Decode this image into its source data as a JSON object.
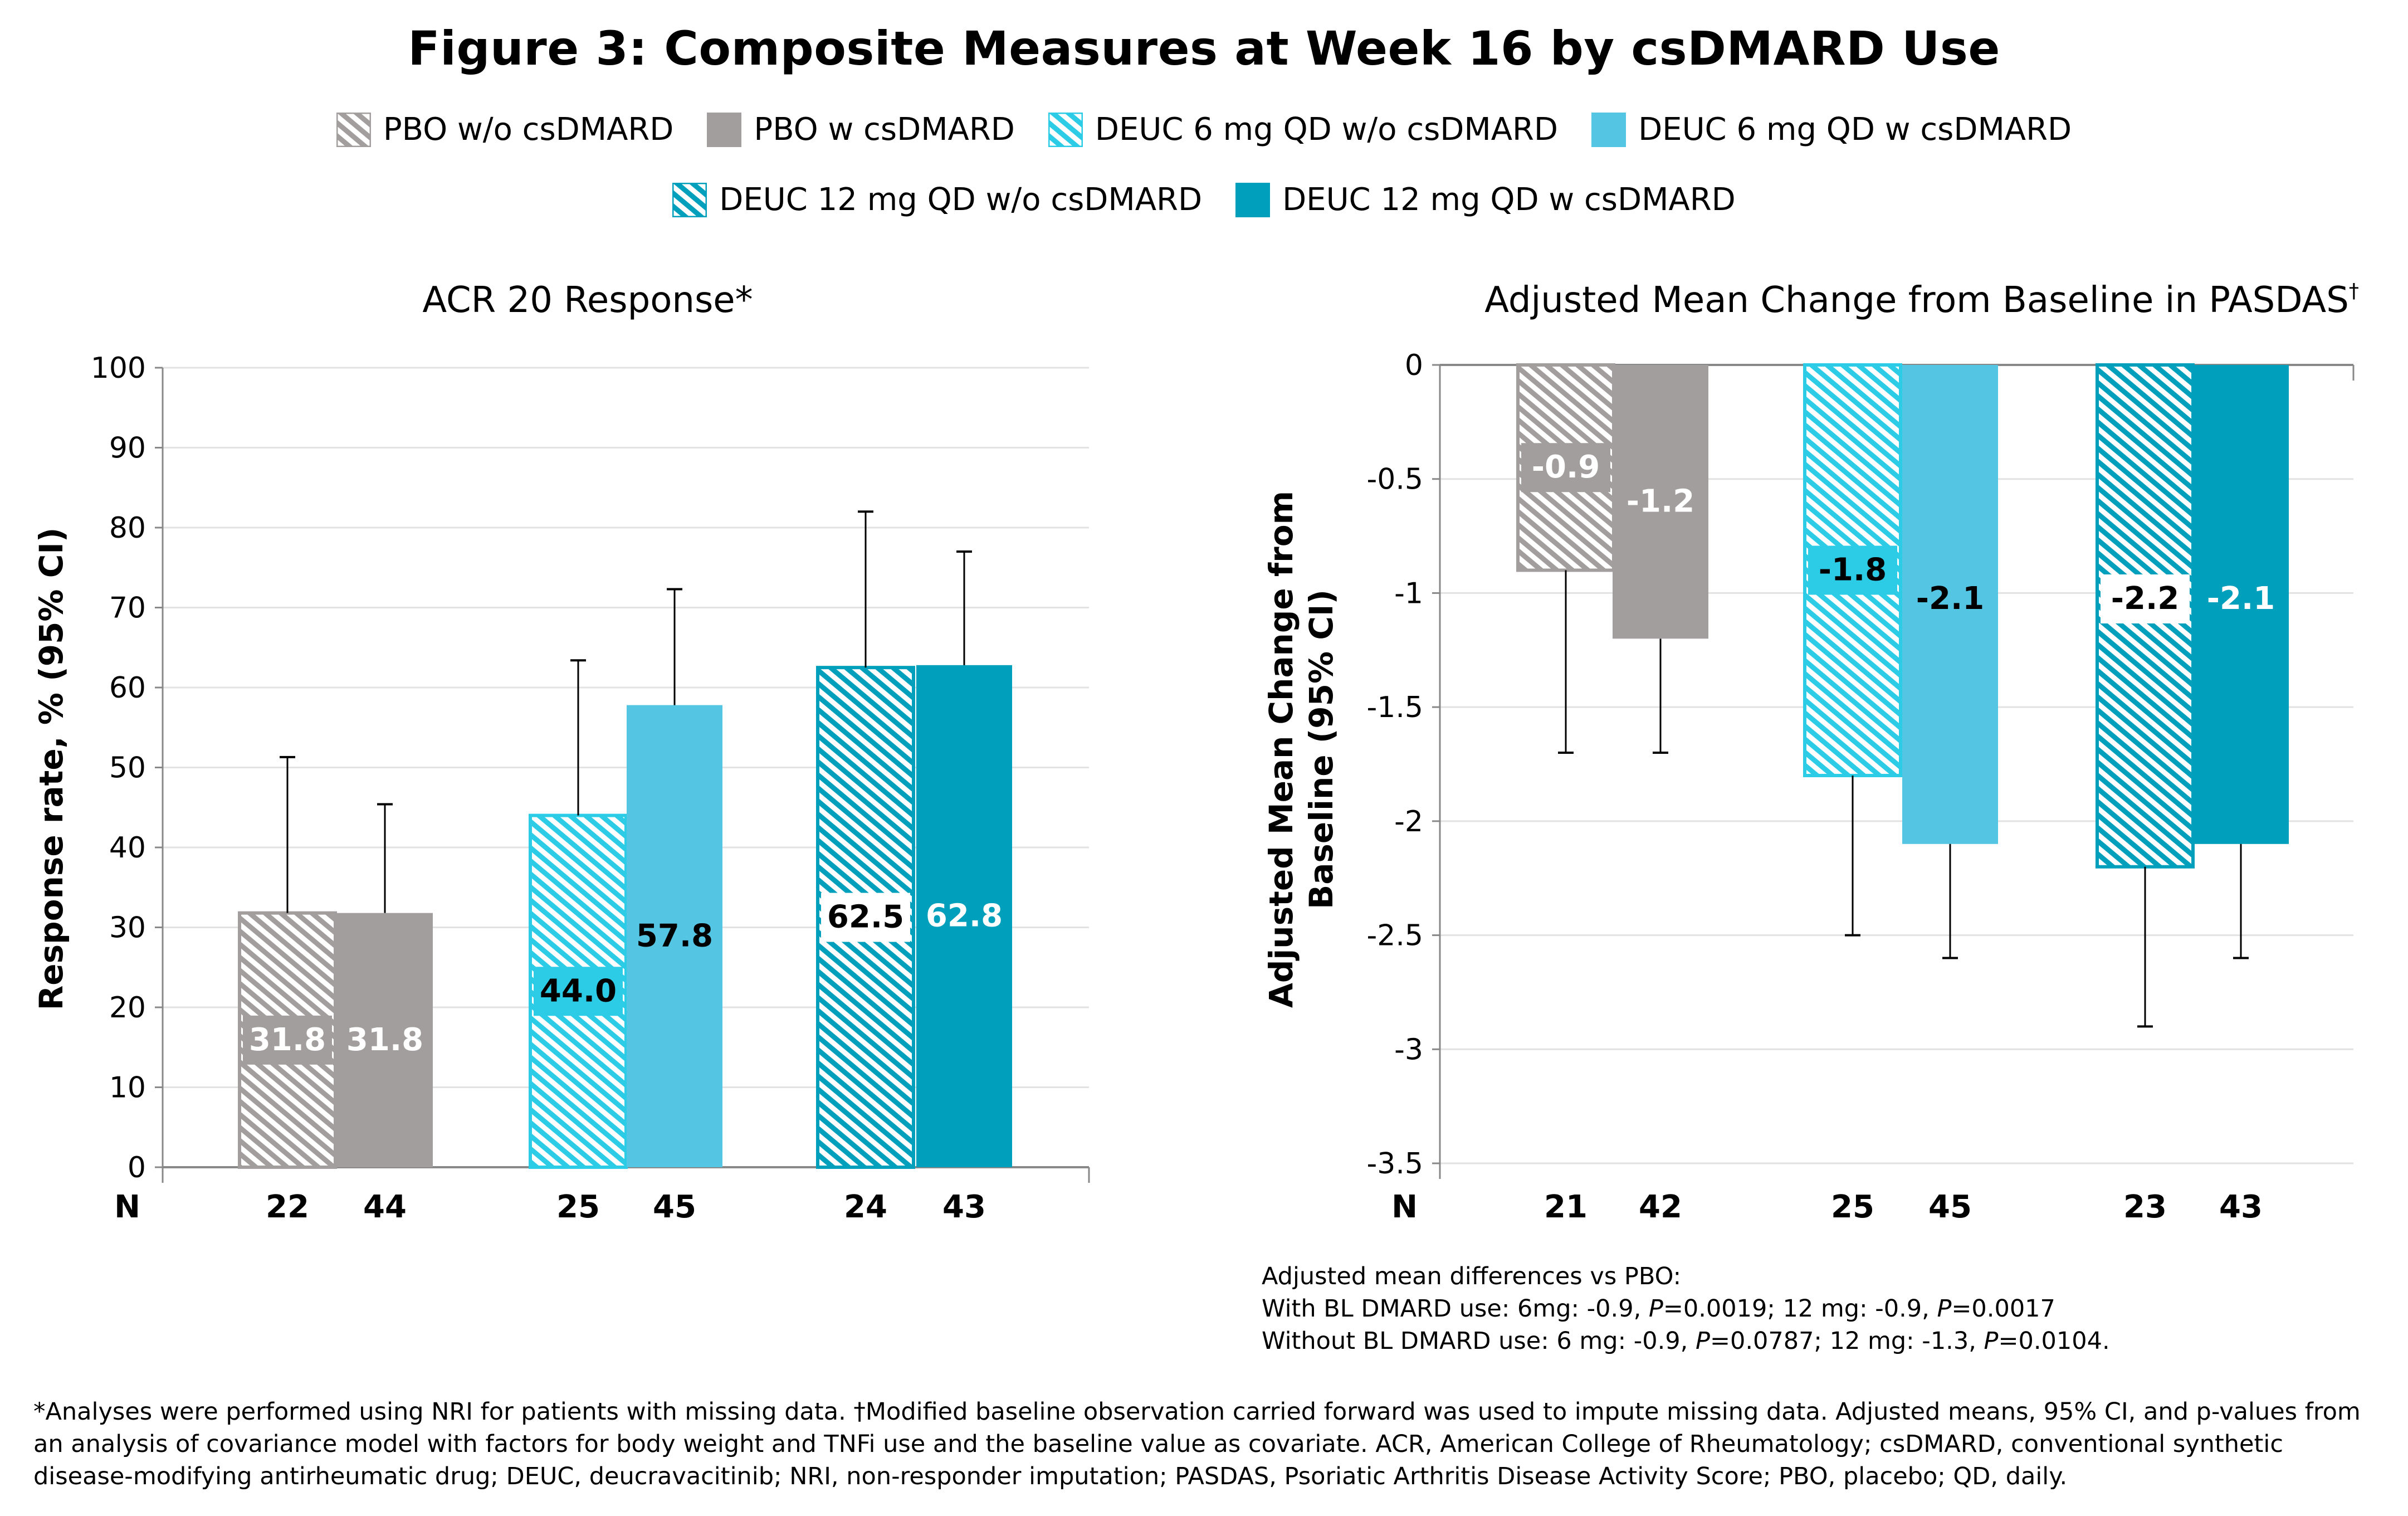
{
  "figure": {
    "title": "Figure 3: Composite Measures at Week 16 by csDMARD Use"
  },
  "legend": {
    "rows": [
      [
        {
          "label": "PBO w/o csDMARD",
          "color": "#a39e9e",
          "hatched": true
        },
        {
          "label": "PBO w csDMARD",
          "color": "#a39e9e",
          "hatched": false
        },
        {
          "label": "DEUC 6 mg QD w/o csDMARD",
          "color": "#2ccbe6",
          "hatched": true
        },
        {
          "label": "DEUC 6 mg QD w csDMARD",
          "color": "#54c5e3",
          "hatched": false
        }
      ],
      [
        {
          "label": "DEUC 12 mg QD w/o csDMARD",
          "color": "#00a0bc",
          "hatched": true
        },
        {
          "label": "DEUC 12 mg QD w csDMARD",
          "color": "#00a0bc",
          "hatched": false
        }
      ]
    ]
  },
  "chart_data": [
    {
      "type": "bar",
      "title": "ACR 20 Response*",
      "xlabel": "",
      "ylabel": "Response rate, % (95% CI)",
      "ylim": [
        0,
        100
      ],
      "yticks": [
        0,
        10,
        20,
        30,
        40,
        50,
        60,
        70,
        80,
        90,
        100
      ],
      "ytick_labels": [
        "0",
        "10",
        "20",
        "30",
        "40",
        "50",
        "60",
        "70",
        "80",
        "90",
        "100"
      ],
      "grid": true,
      "n_label": "N",
      "groups": [
        "PBO",
        "DEUC 6 mg QD",
        "DEUC 12 mg QD"
      ],
      "series": [
        {
          "name": "PBO w/o csDMARD",
          "group": 0,
          "hatched": true,
          "color": "#a39e9e",
          "value": 31.8,
          "label": "31.8",
          "label_color": "#ffffff",
          "label_box": false,
          "ci_upper": 51.3,
          "n": "22"
        },
        {
          "name": "PBO w csDMARD",
          "group": 0,
          "hatched": false,
          "color": "#a39e9e",
          "value": 31.8,
          "label": "31.8",
          "label_color": "#ffffff",
          "label_box": false,
          "ci_upper": 45.4,
          "n": "44"
        },
        {
          "name": "DEUC 6 mg QD w/o csDMARD",
          "group": 1,
          "hatched": true,
          "color": "#2ccbe6",
          "value": 44.0,
          "label": "44.0",
          "label_color": "#000000",
          "label_box": false,
          "ci_upper": 63.4,
          "n": "25"
        },
        {
          "name": "DEUC 6 mg QD w csDMARD",
          "group": 1,
          "hatched": false,
          "color": "#54c5e3",
          "value": 57.8,
          "label": "57.8",
          "label_color": "#000000",
          "label_box": false,
          "ci_upper": 72.3,
          "n": "45"
        },
        {
          "name": "DEUC 12 mg QD w/o csDMARD",
          "group": 2,
          "hatched": true,
          "color": "#00a0bc",
          "value": 62.5,
          "label": "62.5",
          "label_color": "#000000",
          "label_box": true,
          "ci_upper": 82.0,
          "n": "24"
        },
        {
          "name": "DEUC 12 mg QD w csDMARD",
          "group": 2,
          "hatched": false,
          "color": "#00a0bc",
          "value": 62.8,
          "label": "62.8",
          "label_color": "#ffffff",
          "label_box": false,
          "ci_upper": 77.0,
          "n": "43"
        }
      ]
    },
    {
      "type": "bar",
      "title": "Adjusted Mean Change from Baseline in PASDAS",
      "title_superscript": "†",
      "xlabel": "",
      "ylabel_lines": [
        "Adjusted Mean Change from",
        "Baseline  (95% CI)"
      ],
      "ylim": [
        -3.5,
        0
      ],
      "yticks": [
        0,
        -0.5,
        -1,
        -1.5,
        -2,
        -2.5,
        -3,
        -3.5
      ],
      "ytick_labels": [
        "0",
        "-0.5",
        "-1",
        "-1.5",
        "-2",
        "-2.5",
        "-3",
        "-3.5"
      ],
      "grid": true,
      "n_label": "N",
      "groups": [
        "PBO",
        "DEUC 6 mg QD",
        "DEUC 12 mg QD"
      ],
      "series": [
        {
          "name": "PBO w/o csDMARD",
          "group": 0,
          "hatched": true,
          "color": "#a39e9e",
          "value": -0.9,
          "label": "-0.9",
          "label_color": "#ffffff",
          "label_box": false,
          "ci_lower": -1.7,
          "n": "21"
        },
        {
          "name": "PBO w csDMARD",
          "group": 0,
          "hatched": false,
          "color": "#a39e9e",
          "value": -1.2,
          "label": "-1.2",
          "label_color": "#ffffff",
          "label_box": false,
          "ci_lower": -1.7,
          "n": "42"
        },
        {
          "name": "DEUC 6 mg QD w/o csDMARD",
          "group": 1,
          "hatched": true,
          "color": "#2ccbe6",
          "value": -1.8,
          "label": "-1.8",
          "label_color": "#000000",
          "label_box": false,
          "ci_lower": -2.5,
          "n": "25"
        },
        {
          "name": "DEUC 6 mg QD w csDMARD",
          "group": 1,
          "hatched": false,
          "color": "#54c5e3",
          "value": -2.1,
          "label": "-2.1",
          "label_color": "#000000",
          "label_box": false,
          "ci_lower": -2.6,
          "n": "45"
        },
        {
          "name": "DEUC 12 mg QD w/o csDMARD",
          "group": 2,
          "hatched": true,
          "color": "#00a0bc",
          "value": -2.2,
          "label": "-2.2",
          "label_color": "#000000",
          "label_box": true,
          "ci_lower": -2.9,
          "n": "23"
        },
        {
          "name": "DEUC 12 mg QD w csDMARD",
          "group": 2,
          "hatched": false,
          "color": "#00a0bc",
          "value": -2.1,
          "label": "-2.1",
          "label_color": "#ffffff",
          "label_box": false,
          "ci_lower": -2.6,
          "n": "43"
        }
      ]
    }
  ],
  "pasdas_note": {
    "heading": "Adjusted mean differences vs PBO:",
    "line1_parts": [
      "With BL DMARD use: 6mg: -0.9, ",
      "P",
      "=0.0019; 12 mg: -0.9, ",
      "P",
      "=0.0017"
    ],
    "line2_parts": [
      "Without BL DMARD use: 6 mg: -0.9, ",
      "P",
      "=0.0787; 12 mg: -1.3, ",
      "P",
      "=0.0104."
    ]
  },
  "footnote": "*Analyses were performed using NRI for patients with missing data. †Modified baseline observation carried forward was used to impute missing data. Adjusted means, 95% CI, and p-values from an analysis of covariance model with factors for body weight and TNFi use and the baseline value as covariate. ACR, American College of Rheumatology; csDMARD, conventional synthetic disease-modifying antirheumatic drug; DEUC, deucravacitinib; NRI, non-responder imputation; PASDAS, Psoriatic Arthritis Disease Activity Score; PBO, placebo; QD, daily."
}
